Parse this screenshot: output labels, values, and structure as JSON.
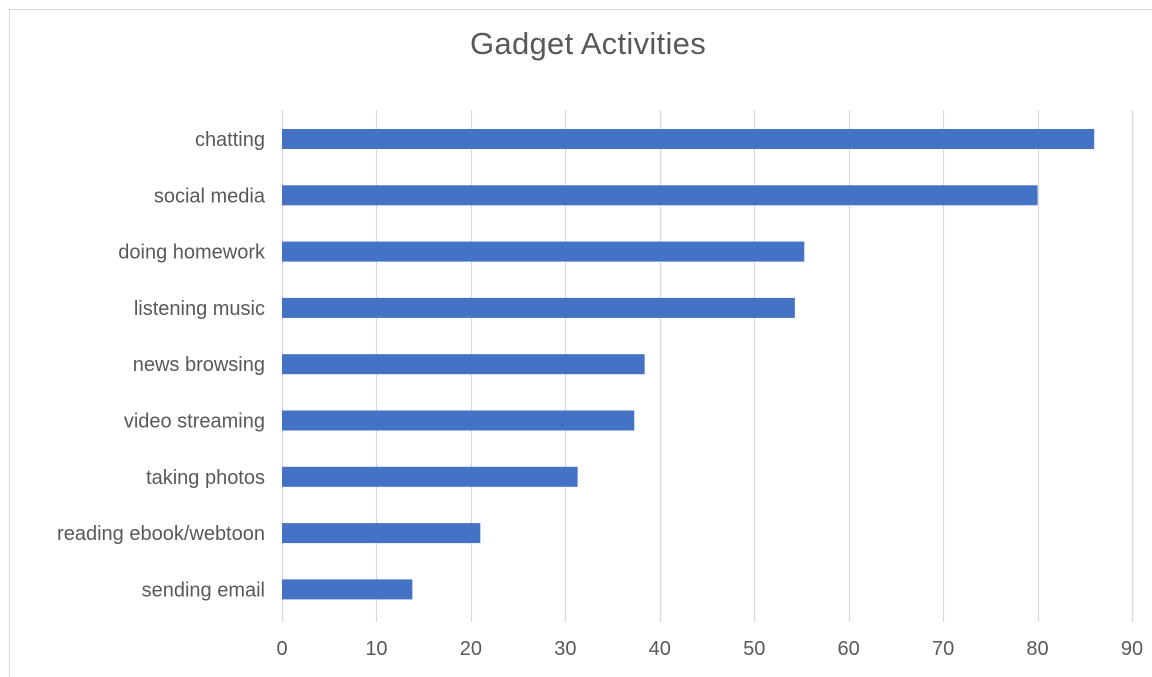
{
  "chart_data": {
    "type": "bar",
    "orientation": "horizontal",
    "title": "Gadget Activities",
    "xlabel": "",
    "ylabel": "",
    "categories": [
      "chatting",
      "social media",
      "doing homework",
      "listening music",
      "news browsing",
      "video streaming",
      "taking photos",
      "reading ebook/webtoon",
      "sending email"
    ],
    "values": [
      86,
      80,
      55.3,
      54.3,
      38.4,
      37.3,
      31.3,
      21,
      13.8
    ],
    "xlim": [
      0,
      90
    ],
    "x_ticks": [
      "0",
      "10",
      "20",
      "30",
      "40",
      "50",
      "60",
      "70",
      "80",
      "90"
    ],
    "grid": "vertical",
    "legend": "none",
    "bar_color": "#4472C4",
    "gridline_color": "#d9d9d9",
    "text_color": "#595959"
  }
}
